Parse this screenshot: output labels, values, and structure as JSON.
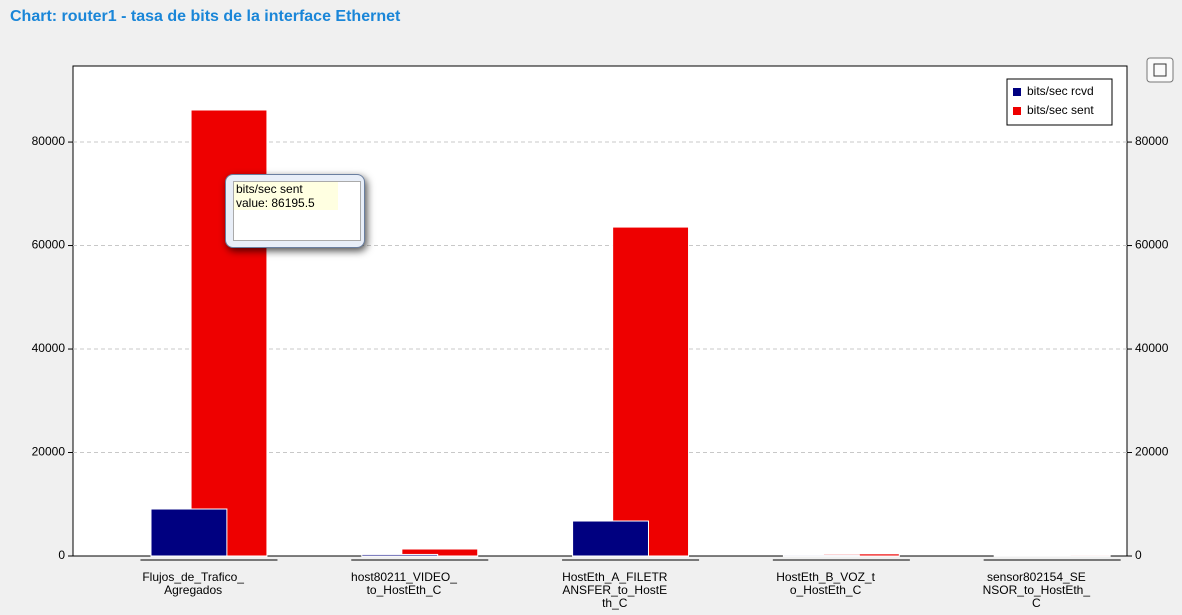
{
  "chart_data": {
    "type": "bar",
    "title": "Chart: router1 - tasa de bits de la interface Ethernet",
    "categories": [
      "Flujos_de_Trafico_\nAgregados",
      "host80211_VIDEO_\nto_HostEth_C",
      "HostEth_A_FILETR\nANSFER_to_HostE\nth_C",
      "HostEth_B_VOZ_t\no_HostEth_C",
      "sensor802154_SE\nNSOR_to_HostEth_\nC"
    ],
    "series": [
      {
        "name": "bits/sec rcvd",
        "color": "#000080",
        "values": [
          9080,
          300,
          6760,
          200,
          180
        ]
      },
      {
        "name": "bits/sec sent",
        "color": "#ee0000",
        "values": [
          86195.5,
          1350,
          63570,
          420,
          200
        ]
      }
    ],
    "ylim": [
      0,
      94700
    ],
    "yticks": [
      0,
      20000,
      40000,
      60000,
      80000
    ],
    "y2lim": [
      0,
      94700
    ],
    "y2ticks": [
      0,
      20000,
      40000,
      60000,
      80000
    ],
    "grid": true,
    "legend": "top-right",
    "tooltip": {
      "series": "bits/sec sent",
      "text": "value: 86195.5"
    }
  }
}
